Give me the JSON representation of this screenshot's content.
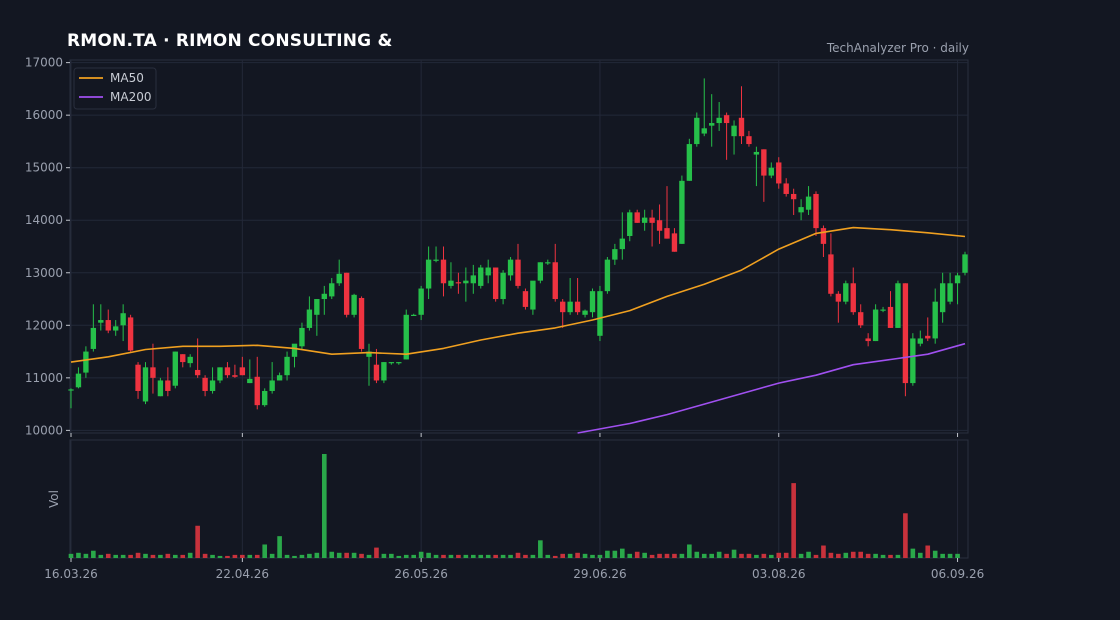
{
  "header": {
    "title": "RMON.TA  ·  RIMON CONSULTING &",
    "source": "TechAnalyzer Pro · daily"
  },
  "chart_data": {
    "type": "candlestick",
    "ylim": [
      9950,
      17050
    ],
    "yticks": [
      10000,
      11000,
      12000,
      13000,
      14000,
      15000,
      16000,
      17000
    ],
    "x_tick_labels": [
      "16.03.26",
      "22.04.26",
      "26.05.26",
      "29.06.26",
      "03.08.26",
      "06.09.26"
    ],
    "x_tick_indices": [
      0,
      23,
      47,
      71,
      95,
      119
    ],
    "volume_label": "Vol",
    "legend": [
      {
        "name": "MA50",
        "color": "#f0a020"
      },
      {
        "name": "MA200",
        "color": "#a050f0"
      }
    ],
    "colors": {
      "up": "#26c04a",
      "down": "#ef3340",
      "background": "#131722",
      "grid": "#232838",
      "text": "#9aa0ae"
    },
    "candles": [
      {
        "o": 10780,
        "h": 10800,
        "l": 10420,
        "c": 10780
      },
      {
        "o": 10820,
        "h": 11200,
        "l": 10800,
        "c": 11080
      },
      {
        "o": 11100,
        "h": 11600,
        "l": 11000,
        "c": 11500
      },
      {
        "o": 11550,
        "h": 12400,
        "l": 11500,
        "c": 11950
      },
      {
        "o": 12050,
        "h": 12400,
        "l": 11900,
        "c": 12100
      },
      {
        "o": 12100,
        "h": 12300,
        "l": 11850,
        "c": 11900
      },
      {
        "o": 11900,
        "h": 12100,
        "l": 11800,
        "c": 11980
      },
      {
        "o": 12000,
        "h": 12400,
        "l": 11700,
        "c": 12230
      },
      {
        "o": 12150,
        "h": 12200,
        "l": 11500,
        "c": 11520
      },
      {
        "o": 11250,
        "h": 11300,
        "l": 10600,
        "c": 10750
      },
      {
        "o": 10550,
        "h": 11300,
        "l": 10500,
        "c": 11200
      },
      {
        "o": 11200,
        "h": 11650,
        "l": 10700,
        "c": 11000
      },
      {
        "o": 10650,
        "h": 11000,
        "l": 10650,
        "c": 10950
      },
      {
        "o": 10950,
        "h": 11200,
        "l": 10650,
        "c": 10750
      },
      {
        "o": 10850,
        "h": 11500,
        "l": 10800,
        "c": 11500
      },
      {
        "o": 11450,
        "h": 11450,
        "l": 11200,
        "c": 11300
      },
      {
        "o": 11280,
        "h": 11450,
        "l": 11200,
        "c": 11400
      },
      {
        "o": 11150,
        "h": 11750,
        "l": 11000,
        "c": 11050
      },
      {
        "o": 11000,
        "h": 11050,
        "l": 10650,
        "c": 10750
      },
      {
        "o": 10750,
        "h": 11200,
        "l": 10700,
        "c": 10950
      },
      {
        "o": 10950,
        "h": 11200,
        "l": 10900,
        "c": 11200
      },
      {
        "o": 11200,
        "h": 11300,
        "l": 11000,
        "c": 11050
      },
      {
        "o": 11050,
        "h": 11250,
        "l": 11000,
        "c": 11020
      },
      {
        "o": 11200,
        "h": 11400,
        "l": 11050,
        "c": 11050
      },
      {
        "o": 10900,
        "h": 11350,
        "l": 10900,
        "c": 10980
      },
      {
        "o": 11020,
        "h": 11400,
        "l": 10400,
        "c": 10480
      },
      {
        "o": 10480,
        "h": 10800,
        "l": 10450,
        "c": 10750
      },
      {
        "o": 10750,
        "h": 11300,
        "l": 10700,
        "c": 10950
      },
      {
        "o": 10950,
        "h": 11100,
        "l": 10950,
        "c": 11050
      },
      {
        "o": 11050,
        "h": 11500,
        "l": 10950,
        "c": 11400
      },
      {
        "o": 11400,
        "h": 11600,
        "l": 11200,
        "c": 11650
      },
      {
        "o": 11600,
        "h": 12050,
        "l": 11550,
        "c": 11950
      },
      {
        "o": 11950,
        "h": 12550,
        "l": 11900,
        "c": 12300
      },
      {
        "o": 12200,
        "h": 12500,
        "l": 11800,
        "c": 12500
      },
      {
        "o": 12500,
        "h": 12750,
        "l": 12200,
        "c": 12600
      },
      {
        "o": 12550,
        "h": 12900,
        "l": 12500,
        "c": 12800
      },
      {
        "o": 12800,
        "h": 13250,
        "l": 12750,
        "c": 12980
      },
      {
        "o": 13000,
        "h": 13000,
        "l": 12150,
        "c": 12200
      },
      {
        "o": 12200,
        "h": 12600,
        "l": 12150,
        "c": 12580
      },
      {
        "o": 12520,
        "h": 12550,
        "l": 11500,
        "c": 11550
      },
      {
        "o": 11400,
        "h": 11650,
        "l": 10850,
        "c": 11500
      },
      {
        "o": 11250,
        "h": 11550,
        "l": 10900,
        "c": 10950
      },
      {
        "o": 10950,
        "h": 11300,
        "l": 10900,
        "c": 11300
      },
      {
        "o": 11300,
        "h": 11300,
        "l": 11250,
        "c": 11300
      },
      {
        "o": 11300,
        "h": 11300,
        "l": 11250,
        "c": 11300
      },
      {
        "o": 11350,
        "h": 12300,
        "l": 11350,
        "c": 12200
      },
      {
        "o": 12200,
        "h": 12220,
        "l": 12180,
        "c": 12200
      },
      {
        "o": 12200,
        "h": 12750,
        "l": 12100,
        "c": 12700
      },
      {
        "o": 12700,
        "h": 13500,
        "l": 12500,
        "c": 13250
      },
      {
        "o": 13250,
        "h": 13500,
        "l": 13200,
        "c": 13250
      },
      {
        "o": 13250,
        "h": 13500,
        "l": 12550,
        "c": 12800
      },
      {
        "o": 12750,
        "h": 13200,
        "l": 12700,
        "c": 12850
      },
      {
        "o": 12820,
        "h": 13000,
        "l": 12600,
        "c": 12800
      },
      {
        "o": 12800,
        "h": 13100,
        "l": 12450,
        "c": 12850
      },
      {
        "o": 12800,
        "h": 13150,
        "l": 12600,
        "c": 12950
      },
      {
        "o": 12750,
        "h": 13150,
        "l": 12700,
        "c": 13100
      },
      {
        "o": 12950,
        "h": 13250,
        "l": 12800,
        "c": 13100
      },
      {
        "o": 13100,
        "h": 13100,
        "l": 12450,
        "c": 12500
      },
      {
        "o": 12500,
        "h": 13050,
        "l": 12400,
        "c": 13000
      },
      {
        "o": 12950,
        "h": 13300,
        "l": 12850,
        "c": 13250
      },
      {
        "o": 13250,
        "h": 13550,
        "l": 12700,
        "c": 12750
      },
      {
        "o": 12650,
        "h": 12700,
        "l": 12300,
        "c": 12350
      },
      {
        "o": 12300,
        "h": 12800,
        "l": 12200,
        "c": 12850
      },
      {
        "o": 12850,
        "h": 13200,
        "l": 12800,
        "c": 13200
      },
      {
        "o": 13200,
        "h": 13250,
        "l": 13150,
        "c": 13200
      },
      {
        "o": 13200,
        "h": 13550,
        "l": 12450,
        "c": 12500
      },
      {
        "o": 12450,
        "h": 12500,
        "l": 11950,
        "c": 12250
      },
      {
        "o": 12250,
        "h": 12900,
        "l": 12200,
        "c": 12450
      },
      {
        "o": 12450,
        "h": 12900,
        "l": 12200,
        "c": 12250
      },
      {
        "o": 12200,
        "h": 12300,
        "l": 12150,
        "c": 12280
      },
      {
        "o": 12250,
        "h": 12700,
        "l": 12150,
        "c": 12650
      },
      {
        "o": 11800,
        "h": 12750,
        "l": 11700,
        "c": 12650
      },
      {
        "o": 12650,
        "h": 13300,
        "l": 12600,
        "c": 13250
      },
      {
        "o": 13250,
        "h": 13550,
        "l": 13150,
        "c": 13450
      },
      {
        "o": 13450,
        "h": 14150,
        "l": 13250,
        "c": 13650
      },
      {
        "o": 13700,
        "h": 14200,
        "l": 13600,
        "c": 14150
      },
      {
        "o": 14150,
        "h": 14200,
        "l": 13950,
        "c": 13950
      },
      {
        "o": 13950,
        "h": 14200,
        "l": 13800,
        "c": 14050
      },
      {
        "o": 14050,
        "h": 14200,
        "l": 13500,
        "c": 13950
      },
      {
        "o": 14000,
        "h": 14300,
        "l": 13550,
        "c": 13800
      },
      {
        "o": 13850,
        "h": 14650,
        "l": 13650,
        "c": 13650
      },
      {
        "o": 13750,
        "h": 13850,
        "l": 13400,
        "c": 13400
      },
      {
        "o": 13550,
        "h": 14850,
        "l": 13550,
        "c": 14750
      },
      {
        "o": 14750,
        "h": 15550,
        "l": 14750,
        "c": 15450
      },
      {
        "o": 15450,
        "h": 16050,
        "l": 15400,
        "c": 15950
      },
      {
        "o": 15650,
        "h": 16700,
        "l": 15600,
        "c": 15750
      },
      {
        "o": 15800,
        "h": 16400,
        "l": 15400,
        "c": 15850
      },
      {
        "o": 15850,
        "h": 16250,
        "l": 15700,
        "c": 15950
      },
      {
        "o": 16000,
        "h": 16050,
        "l": 15150,
        "c": 15850
      },
      {
        "o": 15600,
        "h": 15900,
        "l": 15250,
        "c": 15800
      },
      {
        "o": 15950,
        "h": 16550,
        "l": 15450,
        "c": 15600
      },
      {
        "o": 15600,
        "h": 15700,
        "l": 15400,
        "c": 15450
      },
      {
        "o": 15250,
        "h": 15400,
        "l": 14650,
        "c": 15300
      },
      {
        "o": 15350,
        "h": 15350,
        "l": 14350,
        "c": 14850
      },
      {
        "o": 14850,
        "h": 15100,
        "l": 14800,
        "c": 15000
      },
      {
        "o": 15100,
        "h": 15200,
        "l": 14600,
        "c": 14700
      },
      {
        "o": 14700,
        "h": 14800,
        "l": 14450,
        "c": 14500
      },
      {
        "o": 14500,
        "h": 14600,
        "l": 14100,
        "c": 14400
      },
      {
        "o": 14150,
        "h": 14400,
        "l": 14000,
        "c": 14250
      },
      {
        "o": 14200,
        "h": 14650,
        "l": 14100,
        "c": 14450
      },
      {
        "o": 14500,
        "h": 14550,
        "l": 13700,
        "c": 13850
      },
      {
        "o": 13850,
        "h": 13900,
        "l": 13300,
        "c": 13550
      },
      {
        "o": 13350,
        "h": 13750,
        "l": 12550,
        "c": 12600
      },
      {
        "o": 12600,
        "h": 12650,
        "l": 12050,
        "c": 12450
      },
      {
        "o": 12450,
        "h": 12850,
        "l": 12400,
        "c": 12800
      },
      {
        "o": 12800,
        "h": 13100,
        "l": 12200,
        "c": 12250
      },
      {
        "o": 12250,
        "h": 12400,
        "l": 11950,
        "c": 12000
      },
      {
        "o": 11750,
        "h": 11850,
        "l": 11600,
        "c": 11700
      },
      {
        "o": 11700,
        "h": 12400,
        "l": 11700,
        "c": 12300
      },
      {
        "o": 12300,
        "h": 12350,
        "l": 12250,
        "c": 12300
      },
      {
        "o": 12350,
        "h": 12650,
        "l": 11950,
        "c": 11950
      },
      {
        "o": 11950,
        "h": 12850,
        "l": 11950,
        "c": 12800
      },
      {
        "o": 12800,
        "h": 12800,
        "l": 10650,
        "c": 10900
      },
      {
        "o": 10900,
        "h": 11850,
        "l": 10850,
        "c": 11750
      },
      {
        "o": 11650,
        "h": 11900,
        "l": 11600,
        "c": 11750
      },
      {
        "o": 11800,
        "h": 12150,
        "l": 11700,
        "c": 11750
      },
      {
        "o": 11750,
        "h": 12700,
        "l": 11650,
        "c": 12450
      },
      {
        "o": 12250,
        "h": 13000,
        "l": 12050,
        "c": 12800
      },
      {
        "o": 12450,
        "h": 13000,
        "l": 12400,
        "c": 12800
      },
      {
        "o": 12800,
        "h": 13000,
        "l": 12400,
        "c": 12950
      },
      {
        "o": 13000,
        "h": 13400,
        "l": 12950,
        "c": 13350
      }
    ],
    "volume": [
      4,
      5,
      4,
      7,
      3,
      4,
      3,
      3,
      3,
      5,
      4,
      3,
      3,
      4,
      3,
      3,
      5,
      31,
      4,
      3,
      2,
      2,
      3,
      3,
      3,
      3,
      13,
      4,
      21,
      3,
      2,
      3,
      4,
      5,
      100,
      6,
      5,
      5,
      5,
      4,
      3,
      10,
      4,
      4,
      2,
      3,
      3,
      6,
      5,
      3,
      3,
      3,
      3,
      3,
      3,
      3,
      3,
      3,
      3,
      3,
      5,
      3,
      3,
      17,
      3,
      2,
      4,
      4,
      5,
      4,
      3,
      3,
      7,
      7,
      9,
      4,
      6,
      5,
      3,
      4,
      4,
      4,
      4,
      13,
      6,
      4,
      4,
      6,
      4,
      8,
      4,
      4,
      3,
      4,
      3,
      5,
      5,
      72,
      4,
      6,
      3,
      12,
      5,
      4,
      5,
      6,
      6,
      4,
      4,
      3,
      3,
      3,
      43,
      9,
      5,
      12,
      7,
      4,
      4,
      4
    ],
    "ma50": [
      [
        0,
        11300
      ],
      [
        5,
        11400
      ],
      [
        10,
        11540
      ],
      [
        15,
        11600
      ],
      [
        20,
        11600
      ],
      [
        25,
        11620
      ],
      [
        30,
        11560
      ],
      [
        35,
        11450
      ],
      [
        40,
        11480
      ],
      [
        45,
        11450
      ],
      [
        50,
        11560
      ],
      [
        55,
        11720
      ],
      [
        60,
        11850
      ],
      [
        65,
        11950
      ],
      [
        70,
        12100
      ],
      [
        75,
        12280
      ],
      [
        80,
        12550
      ],
      [
        85,
        12780
      ],
      [
        90,
        13050
      ],
      [
        95,
        13450
      ],
      [
        100,
        13750
      ],
      [
        105,
        13860
      ],
      [
        110,
        13820
      ],
      [
        115,
        13760
      ],
      [
        120,
        13690
      ]
    ],
    "ma200": [
      [
        68,
        9950
      ],
      [
        75,
        10130
      ],
      [
        80,
        10300
      ],
      [
        85,
        10500
      ],
      [
        90,
        10700
      ],
      [
        95,
        10900
      ],
      [
        100,
        11050
      ],
      [
        105,
        11250
      ],
      [
        110,
        11350
      ],
      [
        115,
        11450
      ],
      [
        120,
        11650
      ]
    ]
  }
}
